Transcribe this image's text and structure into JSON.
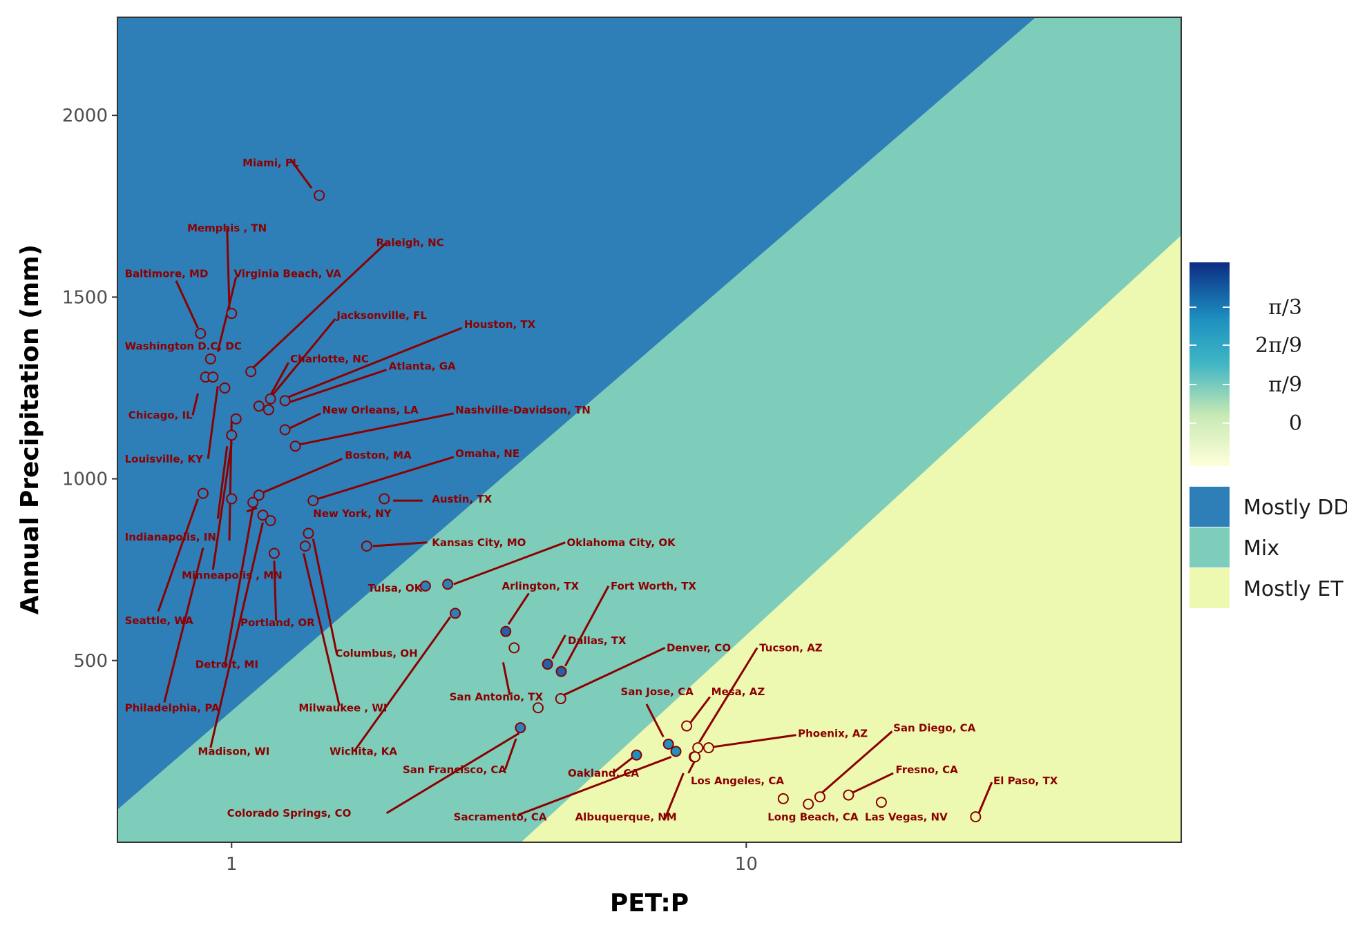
{
  "chart_data": {
    "type": "scatter",
    "xlabel": "PET:P",
    "ylabel": "Annual Precipitation (mm)",
    "x_scale": "log10",
    "xlim": [
      0.6,
      70
    ],
    "ylim": [
      0,
      2270
    ],
    "x_ticks": [
      {
        "value": 1,
        "label": "1"
      },
      {
        "value": 10,
        "label": "10"
      }
    ],
    "y_ticks": [
      {
        "value": 500,
        "label": "500"
      },
      {
        "value": 1000,
        "label": "1000"
      },
      {
        "value": 1500,
        "label": "1500"
      },
      {
        "value": 2000,
        "label": "2000"
      }
    ],
    "regions": [
      {
        "name": "Mostly DD",
        "color": "#2e7eb8"
      },
      {
        "name": "Mix",
        "color": "#7ecdbb"
      },
      {
        "name": "Mostly ET",
        "color": "#edf8b1"
      }
    ],
    "region_boundaries_note_values": {
      "dd_mix": [
        [
          0.6,
          90
        ],
        [
          36.5,
          2270
        ]
      ],
      "mix_et": [
        [
          3.65,
          0
        ],
        [
          70,
          1670
        ]
      ]
    },
    "colorbar": {
      "ticks": [
        "π/3",
        "2π/9",
        "π/9",
        "0"
      ],
      "colors_low_to_high": [
        "#ffffd9",
        "#c7e9b4",
        "#41b6c4",
        "#1d91c0",
        "#0c2c84"
      ]
    },
    "points": [
      {
        "city": "Miami, FL",
        "x": 1.48,
        "y": 1780,
        "fill": "#2e7eb8"
      },
      {
        "city": "Memphis , TN",
        "x": 1.0,
        "y": 1455,
        "fill": "#2e7eb8"
      },
      {
        "city": "Baltimore, MD",
        "x": 0.87,
        "y": 1400,
        "fill": "#2e7eb8"
      },
      {
        "city": "Virginia Beach, VA",
        "x": 0.91,
        "y": 1330,
        "fill": "#2e7eb8"
      },
      {
        "city": "Washington D.C, DC",
        "x": 0.89,
        "y": 1280,
        "fill": "#2e7eb8"
      },
      {
        "city": "Raleigh, NC",
        "x": 1.09,
        "y": 1295,
        "fill": "#2e7eb8"
      },
      {
        "city": "Jacksonville, FL",
        "x": 1.19,
        "y": 1220,
        "fill": "#2e7eb8"
      },
      {
        "city": "Houston, TX",
        "x": 1.27,
        "y": 1215,
        "fill": "#2e7eb8"
      },
      {
        "city": "Charlotte, NC",
        "x": 0.92,
        "y": 1280,
        "fill": "#2e7eb8"
      },
      {
        "city": "Atlanta, GA",
        "x": 1.18,
        "y": 1190,
        "fill": "#2e7eb8"
      },
      {
        "city": "Chicago, IL",
        "x": 0.97,
        "y": 1250,
        "fill": "#2e7eb8"
      },
      {
        "city": "Nashville-Davidson, TN",
        "x": 1.13,
        "y": 1200,
        "fill": "#2e7eb8"
      },
      {
        "city": "New Orleans, LA",
        "x": 1.27,
        "y": 1135,
        "fill": "#2e7eb8"
      },
      {
        "city": "Louisville, KY",
        "x": 1.02,
        "y": 1165,
        "fill": "#2e7eb8"
      },
      {
        "city": "Boston, MA",
        "x": 1.33,
        "y": 1090,
        "fill": "#2e7eb8"
      },
      {
        "city": "Omaha, NE",
        "x": 1.13,
        "y": 955,
        "fill": "#2e7eb8"
      },
      {
        "city": "Austin, TX",
        "x": 1.98,
        "y": 945,
        "fill": "#2e7eb8"
      },
      {
        "city": "Indianapolis, IN",
        "x": 1.0,
        "y": 1120,
        "fill": "#2e7eb8"
      },
      {
        "city": "New York, NY",
        "x": 1.44,
        "y": 940,
        "fill": "#2e7eb8"
      },
      {
        "city": "Minneapolis , MN",
        "x": 1.0,
        "y": 945,
        "fill": "#2e7eb8"
      },
      {
        "city": "Kansas City, MO",
        "x": 1.83,
        "y": 815,
        "fill": "#2e7eb8"
      },
      {
        "city": "Oklahoma City, OK",
        "x": 2.63,
        "y": 710,
        "fill": "#2e7eb8"
      },
      {
        "city": "Tulsa, OK",
        "x": 2.38,
        "y": 705,
        "fill": "#2e7eb8"
      },
      {
        "city": "Seattle, WA",
        "x": 0.88,
        "y": 960,
        "fill": "#2e7eb8"
      },
      {
        "city": "Portland, OR",
        "x": 1.21,
        "y": 795,
        "fill": "#2e7eb8"
      },
      {
        "city": "Columbus, OH",
        "x": 1.41,
        "y": 850,
        "fill": "#2e7eb8"
      },
      {
        "city": "Detroit, MI",
        "x": 1.1,
        "y": 935,
        "fill": "#2e7eb8"
      },
      {
        "city": "Philadelphia, PA",
        "x": 1.15,
        "y": 900,
        "fill": "#2e7eb8"
      },
      {
        "city": "Milwaukee , WI",
        "x": 1.39,
        "y": 815,
        "fill": "#2e7eb8"
      },
      {
        "city": "Madison, WI",
        "x": 1.19,
        "y": 885,
        "fill": "#2e7eb8"
      },
      {
        "city": "Wichita, KA",
        "x": 2.72,
        "y": 630,
        "fill": "#2e7eb8"
      },
      {
        "city": "Arlington, TX",
        "x": 3.41,
        "y": 580,
        "fill": "#2460a7"
      },
      {
        "city": "Dallas, TX",
        "x": 4.11,
        "y": 490,
        "fill": "#2460a7"
      },
      {
        "city": "Fort Worth, TX",
        "x": 4.37,
        "y": 470,
        "fill": "#2460a7"
      },
      {
        "city": "San Antonio, TX",
        "x": 3.54,
        "y": 535,
        "fill": "#7ecdbb"
      },
      {
        "city": "Denver, CO",
        "x": 4.36,
        "y": 395,
        "fill": "#7ecdbb"
      },
      {
        "city": "San Jose, CA",
        "x": 7.06,
        "y": 270,
        "fill": "#1d91c0"
      },
      {
        "city": "Mesa, AZ",
        "x": 7.66,
        "y": 320,
        "fill": "#edf8b1"
      },
      {
        "city": "Tucson, AZ",
        "x": 8.05,
        "y": 260,
        "fill": "#edf8b1"
      },
      {
        "city": "Phoenix, AZ",
        "x": 8.45,
        "y": 260,
        "fill": "#edf8b1"
      },
      {
        "city": "San Francisco, CA",
        "x": 3.64,
        "y": 315,
        "fill": "#2e7eb8"
      },
      {
        "city": "Colorado Springs, CO",
        "x": 3.94,
        "y": 370,
        "fill": "#7ecdbb"
      },
      {
        "city": "Oakland, CA",
        "x": 6.12,
        "y": 240,
        "fill": "#1d91c0"
      },
      {
        "city": "Sacramento, CA",
        "x": 7.3,
        "y": 250,
        "fill": "#1d91c0"
      },
      {
        "city": "Albuquerque, NM",
        "x": 7.92,
        "y": 235,
        "fill": "#edf8b1"
      },
      {
        "city": "Los Angeles, CA",
        "x": 7.95,
        "y": 235,
        "fill": "#edf8b1"
      },
      {
        "city": "Long Beach, CA",
        "x": 11.8,
        "y": 120,
        "fill": "#edf8b1"
      },
      {
        "city": "San Diego, CA",
        "x": 13.9,
        "y": 125,
        "fill": "#edf8b1"
      },
      {
        "city": "Fresno, CA",
        "x": 15.8,
        "y": 130,
        "fill": "#edf8b1"
      },
      {
        "city": "Las Vegas, NV",
        "x": 18.3,
        "y": 110,
        "fill": "#edf8b1"
      },
      {
        "city": "El Paso, TX",
        "x": 27.9,
        "y": 70,
        "fill": "#edf8b1"
      },
      {
        "city": "Long Beach, CA b",
        "x": 13.2,
        "y": 105,
        "fill": "#edf8b1"
      }
    ],
    "labels": [
      {
        "text": "Miami, FL",
        "lx": 1.05,
        "ly": 1860,
        "sx": 1.3,
        "sy": 1880,
        "ex": 1.43,
        "ey": 1800
      },
      {
        "text": "Memphis , TN",
        "lx": 0.82,
        "ly": 1680,
        "sx": 0.98,
        "sy": 1690,
        "ex": 0.99,
        "ey": 1470
      },
      {
        "text": "Raleigh, NC",
        "lx": 1.91,
        "ly": 1640,
        "sx": 2.0,
        "sy": 1650,
        "ex": 1.1,
        "ey": 1305
      },
      {
        "text": "Baltimore, MD",
        "lx": 0.62,
        "ly": 1555,
        "sx": 0.78,
        "sy": 1545,
        "ex": 0.86,
        "ey": 1415
      },
      {
        "text": "Virginia Beach, VA",
        "lx": 1.01,
        "ly": 1555,
        "sx": 1.02,
        "sy": 1555,
        "ex": 0.94,
        "ey": 1350
      },
      {
        "text": "Jacksonville, FL",
        "lx": 1.6,
        "ly": 1440,
        "sx": 1.59,
        "sy": 1440,
        "ex": 1.2,
        "ey": 1230
      },
      {
        "text": "Houston, TX",
        "lx": 2.83,
        "ly": 1415,
        "sx": 2.8,
        "sy": 1415,
        "ex": 1.29,
        "ey": 1225
      },
      {
        "text": "Washington D.C, DC",
        "lx": 0.62,
        "ly": 1355,
        "sx": 0.86,
        "sy": 1235,
        "ex": 0.84,
        "ey": 1175
      },
      {
        "text": "Charlotte, NC",
        "lx": 1.3,
        "ly": 1320,
        "sx": 1.29,
        "sy": 1320,
        "ex": 1.19,
        "ey": 1230
      },
      {
        "text": "Atlanta, GA",
        "lx": 2.02,
        "ly": 1300,
        "sx": 2.0,
        "sy": 1300,
        "ex": 1.29,
        "ey": 1210
      },
      {
        "text": "Chicago, IL",
        "lx": 0.63,
        "ly": 1165,
        "sx": 0.94,
        "sy": 1255,
        "ex": 0.9,
        "ey": 1055
      },
      {
        "text": "New Orleans, LA",
        "lx": 1.5,
        "ly": 1180,
        "sx": 1.49,
        "sy": 1180,
        "ex": 1.3,
        "ey": 1140
      },
      {
        "text": "Nashville-Davidson, TN",
        "lx": 2.72,
        "ly": 1180,
        "sx": 2.7,
        "sy": 1180,
        "ex": 1.36,
        "ey": 1095
      },
      {
        "text": "Louisville, KY",
        "lx": 0.62,
        "ly": 1045,
        "sx": 1.0,
        "sy": 1160,
        "ex": 0.99,
        "ey": 830
      },
      {
        "text": "Boston, MA",
        "lx": 1.66,
        "ly": 1055,
        "sx": 1.64,
        "sy": 1055,
        "ex": 1.14,
        "ey": 960
      },
      {
        "text": "Omaha, NE",
        "lx": 2.72,
        "ly": 1060,
        "sx": 2.7,
        "sy": 1060,
        "ex": 1.47,
        "ey": 945
      },
      {
        "text": "Austin, TX",
        "lx": 2.45,
        "ly": 935,
        "sx": 2.06,
        "sy": 940,
        "ex": 2.35,
        "ey": 940
      },
      {
        "text": "New York, NY",
        "lx": 1.44,
        "ly": 895,
        "sx": 1.07,
        "sy": 910,
        "ex": 1.12,
        "ey": 920
      },
      {
        "text": "Indianapolis, IN",
        "lx": 0.62,
        "ly": 830,
        "sx": 1.0,
        "sy": 1100,
        "ex": 0.92,
        "ey": 750
      },
      {
        "text": "Kansas City, MO",
        "lx": 2.45,
        "ly": 815,
        "sx": 1.88,
        "sy": 815,
        "ex": 2.4,
        "ey": 825
      },
      {
        "text": "Oklahoma City, OK",
        "lx": 4.48,
        "ly": 815,
        "sx": 4.45,
        "sy": 825,
        "ex": 2.7,
        "ey": 710
      },
      {
        "text": "Minneapolis , MN",
        "lx": 0.8,
        "ly": 725,
        "sx": 0.98,
        "sy": 1090,
        "ex": 0.94,
        "ey": 890
      },
      {
        "text": "Tulsa, OK",
        "lx": 1.84,
        "ly": 690,
        "sx": 2.3,
        "sy": 700,
        "ex": 2.3,
        "ey": 700
      },
      {
        "text": "Arlington, TX",
        "lx": 3.35,
        "ly": 695,
        "sx": 3.78,
        "sy": 685,
        "ex": 3.45,
        "ey": 600
      },
      {
        "text": "Fort Worth, TX",
        "lx": 5.45,
        "ly": 695,
        "sx": 5.4,
        "sy": 705,
        "ex": 4.45,
        "ey": 485
      },
      {
        "text": "Seattle, WA",
        "lx": 0.62,
        "ly": 600,
        "sx": 0.72,
        "sy": 635,
        "ex": 0.86,
        "ey": 945
      },
      {
        "text": "Portland, OR",
        "lx": 1.04,
        "ly": 595,
        "sx": 1.22,
        "sy": 610,
        "ex": 1.21,
        "ey": 775
      },
      {
        "text": "Dallas, TX",
        "lx": 4.5,
        "ly": 545,
        "sx": 4.45,
        "sy": 570,
        "ex": 4.2,
        "ey": 505
      },
      {
        "text": "Detroit, MI",
        "lx": 0.85,
        "ly": 480,
        "sx": 0.97,
        "sy": 485,
        "ex": 1.1,
        "ey": 920
      },
      {
        "text": "Columbus, OH",
        "lx": 1.59,
        "ly": 510,
        "sx": 1.6,
        "sy": 520,
        "ex": 1.44,
        "ey": 835
      },
      {
        "text": "Denver, CO",
        "lx": 7.0,
        "ly": 525,
        "sx": 6.95,
        "sy": 535,
        "ex": 4.42,
        "ey": 405
      },
      {
        "text": "Tucson, AZ",
        "lx": 10.6,
        "ly": 525,
        "sx": 10.5,
        "sy": 535,
        "ex": 8.1,
        "ey": 275
      },
      {
        "text": "San Antonio, TX",
        "lx": 2.65,
        "ly": 390,
        "sx": 3.47,
        "sy": 405,
        "ex": 3.37,
        "ey": 495
      },
      {
        "text": "Philadelphia, PA",
        "lx": 0.62,
        "ly": 360,
        "sx": 0.74,
        "sy": 385,
        "ex": 0.88,
        "ey": 810
      },
      {
        "text": "San Jose, CA",
        "lx": 5.7,
        "ly": 405,
        "sx": 6.4,
        "sy": 380,
        "ex": 6.9,
        "ey": 290
      },
      {
        "text": "Mesa, AZ",
        "lx": 8.55,
        "ly": 405,
        "sx": 8.5,
        "sy": 400,
        "ex": 7.8,
        "ey": 330
      },
      {
        "text": "Milwaukee , WI",
        "lx": 1.35,
        "ly": 360,
        "sx": 1.62,
        "sy": 375,
        "ex": 1.38,
        "ey": 795
      },
      {
        "text": "Phoenix, AZ",
        "lx": 12.6,
        "ly": 290,
        "sx": 12.5,
        "sy": 295,
        "ex": 8.6,
        "ey": 262
      },
      {
        "text": "San Diego, CA",
        "lx": 19.3,
        "ly": 305,
        "sx": 19.2,
        "sy": 305,
        "ex": 14.0,
        "ey": 135
      },
      {
        "text": "Madison, WI",
        "lx": 0.86,
        "ly": 240,
        "sx": 0.91,
        "sy": 260,
        "ex": 1.15,
        "ey": 880
      },
      {
        "text": "Wichita, KA",
        "lx": 1.55,
        "ly": 240,
        "sx": 1.73,
        "sy": 250,
        "ex": 2.66,
        "ey": 620
      },
      {
        "text": "San Francisco, CA",
        "lx": 2.15,
        "ly": 190,
        "sx": 3.4,
        "sy": 200,
        "ex": 3.57,
        "ey": 285
      },
      {
        "text": "Oakland, CA",
        "lx": 4.5,
        "ly": 180,
        "sx": 5.5,
        "sy": 190,
        "ex": 6.0,
        "ey": 232
      },
      {
        "text": "Los Angeles, CA",
        "lx": 7.8,
        "ly": 160,
        "sx": 7.72,
        "sy": 190,
        "ex": 7.95,
        "ey": 225
      },
      {
        "text": "Fresno, CA",
        "lx": 19.5,
        "ly": 190,
        "sx": 19.3,
        "sy": 190,
        "ex": 16.0,
        "ey": 135
      },
      {
        "text": "El Paso, TX",
        "lx": 30.2,
        "ly": 160,
        "sx": 30.0,
        "sy": 165,
        "ex": 28.3,
        "ey": 80
      },
      {
        "text": "Colorado Springs, CO",
        "lx": 0.98,
        "ly": 70,
        "sx": 2.0,
        "sy": 80,
        "ex": 3.62,
        "ey": 300
      },
      {
        "text": "Sacramento, CA",
        "lx": 2.7,
        "ly": 60,
        "sx": 3.6,
        "sy": 75,
        "ex": 7.15,
        "ey": 235
      },
      {
        "text": "Albuquerque, NM",
        "lx": 4.65,
        "ly": 60,
        "sx": 6.95,
        "sy": 65,
        "ex": 7.55,
        "ey": 190
      },
      {
        "text": "Long Beach, CA",
        "lx": 11.0,
        "ly": 60,
        "sx": 0,
        "sy": 0,
        "ex": 0,
        "ey": 0
      },
      {
        "text": "Las Vegas, NV",
        "lx": 17.0,
        "ly": 60,
        "sx": 0,
        "sy": 0,
        "ex": 0,
        "ey": 0
      }
    ],
    "legend": [
      "Mostly DD",
      "Mix",
      "Mostly ET"
    ]
  }
}
